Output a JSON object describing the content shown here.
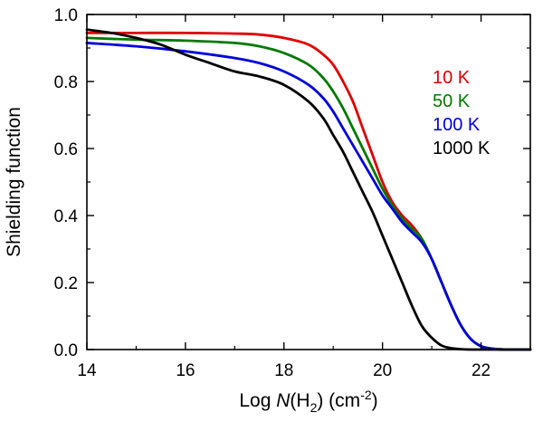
{
  "chart_data": {
    "type": "line",
    "title": "",
    "xlabel": {
      "prefix": "Log ",
      "italic": "N",
      "mid": "(H",
      "sub": "2",
      "after": ") (cm",
      "sup": "-2",
      "end": ")"
    },
    "ylabel": "Shielding function",
    "xlim": [
      14,
      23
    ],
    "ylim": [
      0.0,
      1.0
    ],
    "xticks": [
      14,
      16,
      18,
      20,
      22
    ],
    "xtick_labels": [
      "14",
      "16",
      "18",
      "20",
      "22"
    ],
    "yticks": [
      0.0,
      0.2,
      0.4,
      0.6,
      0.8,
      1.0
    ],
    "ytick_labels": [
      "0.0",
      "0.2",
      "0.4",
      "0.6",
      "0.8",
      "1.0"
    ],
    "legend_position": "top-right",
    "series": [
      {
        "name": "10 K",
        "color": "#e00000",
        "x": [
          14,
          15,
          16,
          17,
          17.5,
          18,
          18.5,
          18.8,
          19,
          19.2,
          19.4,
          19.6,
          19.8,
          20,
          20.2,
          20.4,
          20.6,
          20.8,
          21,
          21.2,
          21.4,
          21.6,
          21.8,
          22,
          22.2,
          22.5,
          23
        ],
        "y": [
          0.945,
          0.945,
          0.945,
          0.943,
          0.94,
          0.93,
          0.91,
          0.88,
          0.85,
          0.8,
          0.74,
          0.66,
          0.58,
          0.5,
          0.44,
          0.4,
          0.37,
          0.33,
          0.27,
          0.2,
          0.13,
          0.07,
          0.03,
          0.01,
          0.003,
          0.0,
          0.0
        ]
      },
      {
        "name": "50 K",
        "color": "#007a00",
        "x": [
          14,
          15,
          16,
          17,
          17.5,
          18,
          18.5,
          18.8,
          19,
          19.2,
          19.4,
          19.6,
          19.8,
          20,
          20.2,
          20.4,
          20.6,
          20.8,
          21,
          21.2,
          21.4,
          21.6,
          21.8,
          22,
          22.2,
          22.5,
          23
        ],
        "y": [
          0.93,
          0.925,
          0.922,
          0.915,
          0.905,
          0.885,
          0.85,
          0.81,
          0.77,
          0.72,
          0.66,
          0.6,
          0.54,
          0.48,
          0.43,
          0.39,
          0.36,
          0.33,
          0.27,
          0.2,
          0.13,
          0.07,
          0.03,
          0.01,
          0.003,
          0.0,
          0.0
        ]
      },
      {
        "name": "100 K",
        "color": "#0000dd",
        "x": [
          14,
          15,
          16,
          17,
          17.5,
          18,
          18.5,
          18.8,
          19,
          19.2,
          19.4,
          19.6,
          19.8,
          20,
          20.2,
          20.4,
          20.6,
          20.8,
          21,
          21.2,
          21.4,
          21.6,
          21.8,
          22,
          22.2,
          22.5,
          23
        ],
        "y": [
          0.915,
          0.905,
          0.89,
          0.87,
          0.855,
          0.83,
          0.79,
          0.75,
          0.71,
          0.66,
          0.61,
          0.56,
          0.51,
          0.46,
          0.42,
          0.38,
          0.35,
          0.32,
          0.27,
          0.2,
          0.13,
          0.07,
          0.03,
          0.01,
          0.003,
          0.0,
          0.0
        ]
      },
      {
        "name": "1000 K",
        "color": "#000000",
        "x": [
          14,
          14.5,
          15,
          15.5,
          16,
          16.5,
          17,
          17.5,
          18,
          18.5,
          18.8,
          19,
          19.2,
          19.4,
          19.6,
          19.8,
          20,
          20.2,
          20.4,
          20.6,
          20.8,
          21,
          21.2,
          21.4,
          21.6,
          21.8,
          22,
          23
        ],
        "y": [
          0.955,
          0.945,
          0.93,
          0.91,
          0.88,
          0.855,
          0.83,
          0.815,
          0.79,
          0.74,
          0.69,
          0.64,
          0.59,
          0.53,
          0.47,
          0.41,
          0.34,
          0.27,
          0.2,
          0.13,
          0.07,
          0.035,
          0.012,
          0.004,
          0.001,
          0.0,
          0.0,
          0.0
        ]
      }
    ]
  }
}
